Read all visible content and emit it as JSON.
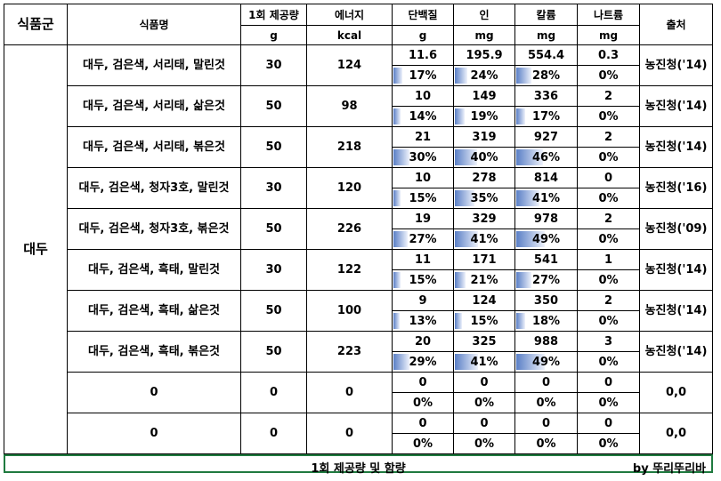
{
  "header": {
    "group": "식품군",
    "name": "식품명",
    "serving": "1회 제공량",
    "energy": "에너지",
    "protein": "단백질",
    "phosphorus": "인",
    "potassium": "칼륨",
    "sodium": "나트륨",
    "source": "출처",
    "units": {
      "serving": "g",
      "energy": "kcal",
      "protein": "g",
      "phosphorus": "mg",
      "potassium": "mg",
      "sodium": "mg"
    }
  },
  "group_label": "대두",
  "rows": [
    {
      "name": "대두, 검은색, 서리태, 말린것",
      "serving": "30",
      "energy": "124",
      "protein": "11.6",
      "protein_pct": "17%",
      "protein_frac": 0.17,
      "phos": "195.9",
      "phos_pct": "24%",
      "phos_frac": 0.24,
      "pot": "554.4",
      "pot_pct": "28%",
      "pot_frac": 0.28,
      "sod": "0.3",
      "sod_pct": "0%",
      "sod_frac": 0,
      "source": "농진청('14)"
    },
    {
      "name": "대두, 검은색, 서리태, 삶은것",
      "serving": "50",
      "energy": "98",
      "protein": "10",
      "protein_pct": "14%",
      "protein_frac": 0.14,
      "phos": "149",
      "phos_pct": "19%",
      "phos_frac": 0.19,
      "pot": "336",
      "pot_pct": "17%",
      "pot_frac": 0.17,
      "sod": "2",
      "sod_pct": "0%",
      "sod_frac": 0,
      "source": "농진청('14)"
    },
    {
      "name": "대두, 검은색, 서리태, 볶은것",
      "serving": "50",
      "energy": "218",
      "protein": "21",
      "protein_pct": "30%",
      "protein_frac": 0.3,
      "phos": "319",
      "phos_pct": "40%",
      "phos_frac": 0.4,
      "pot": "927",
      "pot_pct": "46%",
      "pot_frac": 0.46,
      "sod": "2",
      "sod_pct": "0%",
      "sod_frac": 0,
      "source": "농진청('14)"
    },
    {
      "name": "대두, 검은색, 청자3호, 말린것",
      "serving": "30",
      "energy": "120",
      "protein": "10",
      "protein_pct": "15%",
      "protein_frac": 0.15,
      "phos": "278",
      "phos_pct": "35%",
      "phos_frac": 0.35,
      "pot": "814",
      "pot_pct": "41%",
      "pot_frac": 0.41,
      "sod": "0",
      "sod_pct": "0%",
      "sod_frac": 0,
      "source": "농진청('16)"
    },
    {
      "name": "대두, 검은색, 청자3호, 볶은것",
      "serving": "50",
      "energy": "226",
      "protein": "19",
      "protein_pct": "27%",
      "protein_frac": 0.27,
      "phos": "329",
      "phos_pct": "41%",
      "phos_frac": 0.41,
      "pot": "978",
      "pot_pct": "49%",
      "pot_frac": 0.49,
      "sod": "2",
      "sod_pct": "0%",
      "sod_frac": 0,
      "source": "농진청('09)"
    },
    {
      "name": "대두, 검은색, 흑태, 말린것",
      "serving": "30",
      "energy": "122",
      "protein": "11",
      "protein_pct": "15%",
      "protein_frac": 0.15,
      "phos": "171",
      "phos_pct": "21%",
      "phos_frac": 0.21,
      "pot": "541",
      "pot_pct": "27%",
      "pot_frac": 0.27,
      "sod": "1",
      "sod_pct": "0%",
      "sod_frac": 0,
      "source": "농진청('14)"
    },
    {
      "name": "대두, 검은색, 흑태, 삶은것",
      "serving": "50",
      "energy": "100",
      "protein": "9",
      "protein_pct": "13%",
      "protein_frac": 0.13,
      "phos": "124",
      "phos_pct": "15%",
      "phos_frac": 0.15,
      "pot": "350",
      "pot_pct": "18%",
      "pot_frac": 0.18,
      "sod": "2",
      "sod_pct": "0%",
      "sod_frac": 0,
      "source": "농진청('14)"
    },
    {
      "name": "대두, 검은색, 흑태, 볶은것",
      "serving": "50",
      "energy": "223",
      "protein": "20",
      "protein_pct": "29%",
      "protein_frac": 0.29,
      "phos": "325",
      "phos_pct": "41%",
      "phos_frac": 0.41,
      "pot": "988",
      "pot_pct": "49%",
      "pot_frac": 0.49,
      "sod": "3",
      "sod_pct": "0%",
      "sod_frac": 0,
      "source": "농진청('14)"
    },
    {
      "name": "0",
      "serving": "0",
      "energy": "0",
      "protein": "0",
      "protein_pct": "0%",
      "protein_frac": 0,
      "phos": "0",
      "phos_pct": "0%",
      "phos_frac": 0,
      "pot": "0",
      "pot_pct": "0%",
      "pot_frac": 0,
      "sod": "0",
      "sod_pct": "0%",
      "sod_frac": 0,
      "source": "0,0"
    },
    {
      "name": "0",
      "serving": "0",
      "energy": "0",
      "protein": "0",
      "protein_pct": "0%",
      "protein_frac": 0,
      "phos": "0",
      "phos_pct": "0%",
      "phos_frac": 0,
      "pot": "0",
      "pot_pct": "0%",
      "pot_frac": 0,
      "sod": "0",
      "sod_pct": "0%",
      "sod_frac": 0,
      "source": "0,0"
    }
  ],
  "footer": {
    "title": "1회 제공량 및 함량",
    "credit": "by 뚜리뚜리바"
  },
  "colors": {
    "data_bar": "#5a7fc6",
    "footer_border": "#1f7a3f"
  }
}
